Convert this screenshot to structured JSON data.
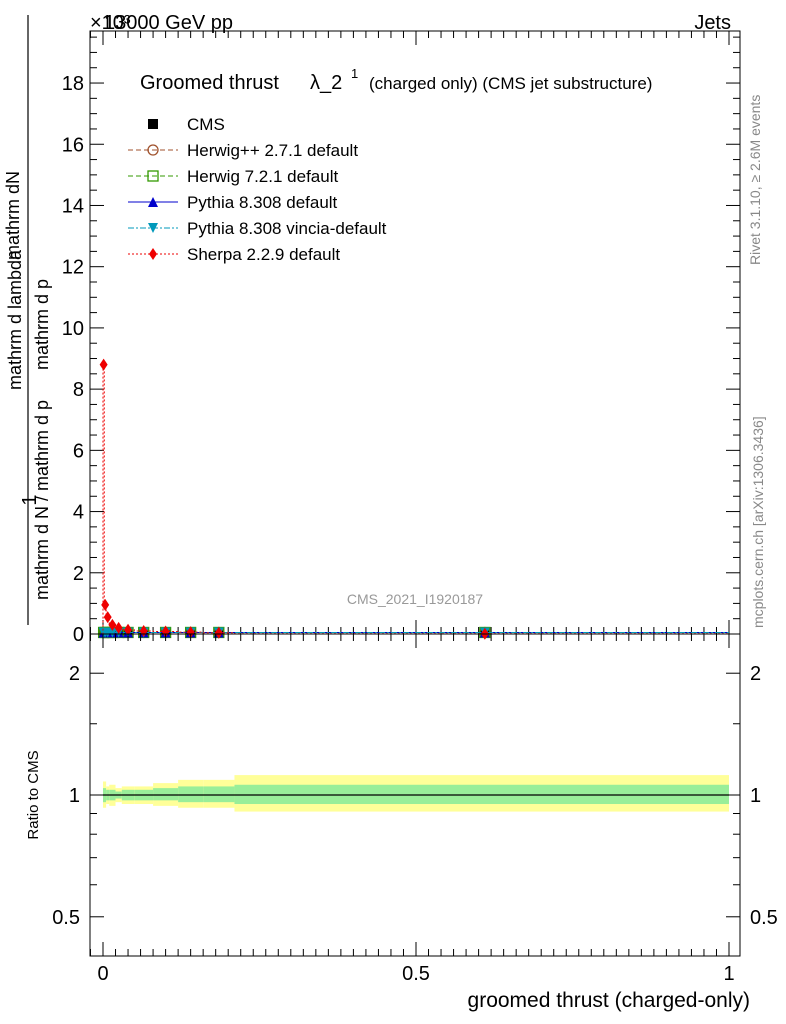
{
  "header": {
    "collision": "13000 GeV pp",
    "exponent": "×10³",
    "category": "Jets"
  },
  "main_plot": {
    "title_main": "Groomed thrust",
    "title_lambda": "λ_2",
    "title_superscript": "1",
    "title_suffix": "(charged only) (CMS jet substructure)",
    "ylabel_left": "1",
    "ylabel_numerator": "mathrm dN",
    "ylabel_denominator_top": "mathrm d N / mathrm d p",
    "ylabel_sub1": "T",
    "ylabel_mid": "mathrm d p",
    "ylabel_sub2": "T",
    "ylabel_tail": "mathrm d lambda",
    "ylabel_full_bottom": "mathrm d N / mathrm d p",
    "analysis_tag": "CMS_2021_I1920187",
    "y_ticks": [
      "0",
      "2",
      "4",
      "6",
      "8",
      "10",
      "12",
      "14",
      "16",
      "18"
    ]
  },
  "side_labels": {
    "rivet": "Rivet 3.1.10, ≥ 2.6M events",
    "mcplots": "mcplots.cern.ch [arXiv:1306.3436]"
  },
  "ratio_plot": {
    "ylabel": "Ratio to CMS",
    "y_ticks": [
      "0.5",
      "1",
      "2"
    ]
  },
  "x_axis": {
    "label": "groomed thrust (charged-only)",
    "ticks": [
      "0",
      "0.5",
      "1"
    ]
  },
  "legend": [
    {
      "label": "CMS",
      "color": "#000000",
      "marker": "square-filled",
      "line": "none"
    },
    {
      "label": "Herwig++ 2.7.1 default",
      "color": "#a0522d",
      "marker": "circle-open",
      "line": "dashed"
    },
    {
      "label": "Herwig 7.2.1 default",
      "color": "#339900",
      "marker": "square-open",
      "line": "dashed"
    },
    {
      "label": "Pythia 8.308 default",
      "color": "#0000cc",
      "marker": "triangle-up",
      "line": "solid"
    },
    {
      "label": "Pythia 8.308 vincia-default",
      "color": "#0099bb",
      "marker": "triangle-down",
      "line": "dashdot"
    },
    {
      "label": "Sherpa 2.2.9 default",
      "color": "#ee0000",
      "marker": "diamond",
      "line": "dotted"
    }
  ],
  "chart_data": {
    "type": "line",
    "xlim": [
      -0.02,
      1.0
    ],
    "ylim": [
      0,
      19.7
    ],
    "y_scale_factor": 1000,
    "bin_edges": [
      0.0,
      0.002,
      0.005,
      0.01,
      0.02,
      0.03,
      0.05,
      0.08,
      0.12,
      0.16,
      0.21,
      1.0
    ],
    "series": [
      {
        "name": "CMS",
        "values": [
          0.05,
          0.05,
          0.05,
          0.05,
          0.05,
          0.05,
          0.05,
          0.05,
          0.05,
          0.05,
          0.05
        ]
      },
      {
        "name": "Herwig++ 2.7.1 default",
        "values": [
          0.05,
          0.05,
          0.05,
          0.05,
          0.05,
          0.05,
          0.05,
          0.05,
          0.05,
          0.05,
          0.05
        ]
      },
      {
        "name": "Herwig 7.2.1 default",
        "values": [
          0.05,
          0.05,
          0.05,
          0.05,
          0.05,
          0.05,
          0.05,
          0.05,
          0.05,
          0.05,
          0.05
        ]
      },
      {
        "name": "Pythia 8.308 default",
        "values": [
          0.05,
          0.05,
          0.05,
          0.05,
          0.05,
          0.05,
          0.05,
          0.05,
          0.05,
          0.05,
          0.05
        ]
      },
      {
        "name": "Pythia 8.308 vincia-default",
        "values": [
          0.05,
          0.05,
          0.05,
          0.05,
          0.05,
          0.05,
          0.05,
          0.05,
          0.05,
          0.05,
          0.05
        ]
      },
      {
        "name": "Sherpa 2.2.9 default",
        "values": [
          8.8,
          0.95,
          0.55,
          0.3,
          0.2,
          0.14,
          0.1,
          0.08,
          0.06,
          0.04,
          0.01
        ]
      }
    ],
    "ratio": {
      "ylim_log": [
        0.4,
        2.5
      ],
      "band_x": [
        0.0,
        0.005,
        0.01,
        0.02,
        0.03,
        0.05,
        0.08,
        0.12,
        0.16,
        0.21,
        1.0
      ],
      "yellow_lo": [
        0.93,
        0.95,
        0.94,
        0.96,
        0.95,
        0.95,
        0.94,
        0.93,
        0.93,
        0.91
      ],
      "yellow_hi": [
        1.08,
        1.05,
        1.06,
        1.04,
        1.05,
        1.05,
        1.07,
        1.09,
        1.09,
        1.12
      ],
      "green_lo": [
        0.96,
        0.97,
        0.97,
        0.98,
        0.97,
        0.97,
        0.97,
        0.96,
        0.96,
        0.95
      ],
      "green_hi": [
        1.04,
        1.03,
        1.03,
        1.02,
        1.03,
        1.03,
        1.04,
        1.05,
        1.05,
        1.06
      ]
    }
  }
}
